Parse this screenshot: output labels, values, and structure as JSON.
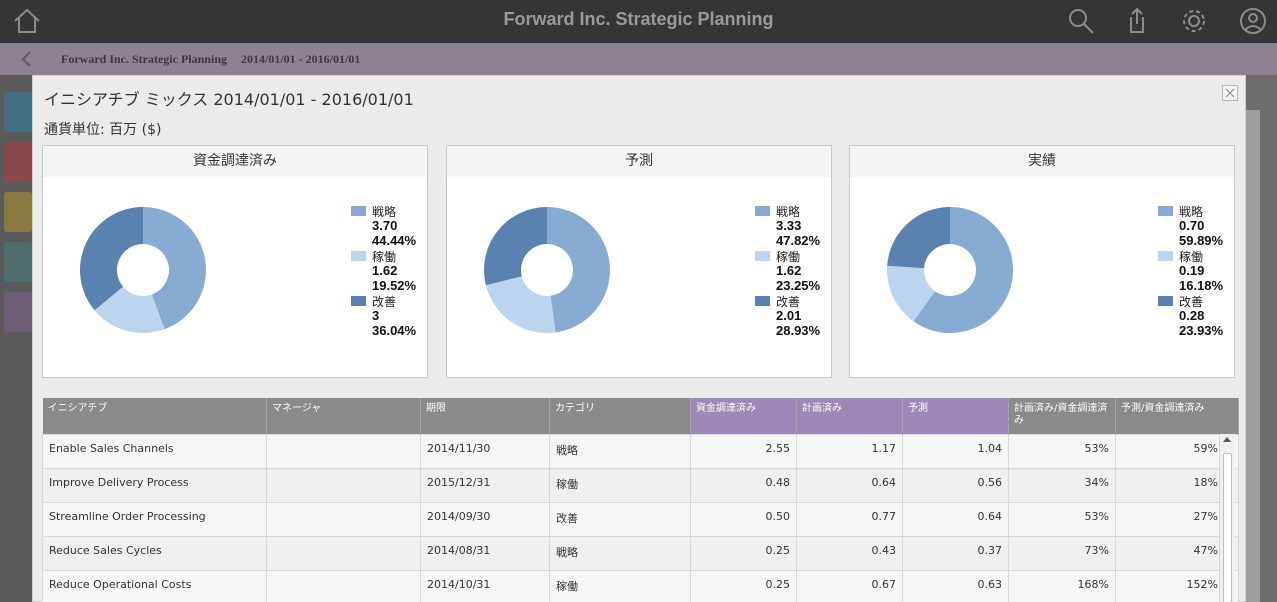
{
  "app": {
    "title": "Forward Inc. Strategic Planning"
  },
  "breadcrumb": {
    "name": "Forward Inc. Strategic Planning",
    "period": "2014/01/01 - 2016/01/01"
  },
  "modal": {
    "title": "イニシアチブ ミックス 2014/01/01 - 2016/01/01",
    "currency": "通貨単位: 百万 ($)"
  },
  "colors": {
    "strategy": "#86aad2",
    "operation": "#bcd5ee",
    "improvement": "#5a82b0"
  },
  "panels": [
    {
      "title": "資金調達済み",
      "legend": [
        {
          "label": "戦略",
          "value": "3.70",
          "pct": "44.44%"
        },
        {
          "label": "稼働",
          "value": "1.62",
          "pct": "19.52%"
        },
        {
          "label": "改善",
          "value": "3",
          "pct": "36.04%"
        }
      ]
    },
    {
      "title": "予測",
      "legend": [
        {
          "label": "戦略",
          "value": "3.33",
          "pct": "47.82%"
        },
        {
          "label": "稼働",
          "value": "1.62",
          "pct": "23.25%"
        },
        {
          "label": "改善",
          "value": "2.01",
          "pct": "28.93%"
        }
      ]
    },
    {
      "title": "実績",
      "legend": [
        {
          "label": "戦略",
          "value": "0.70",
          "pct": "59.89%"
        },
        {
          "label": "稼働",
          "value": "0.19",
          "pct": "16.18%"
        },
        {
          "label": "改善",
          "value": "0.28",
          "pct": "23.93%"
        }
      ]
    }
  ],
  "chart_data": [
    {
      "type": "pie",
      "title": "資金調達済み",
      "categories": [
        "戦略",
        "稼働",
        "改善"
      ],
      "values": [
        3.7,
        1.62,
        3
      ],
      "percentages": [
        44.44,
        19.52,
        36.04
      ]
    },
    {
      "type": "pie",
      "title": "予測",
      "categories": [
        "戦略",
        "稼働",
        "改善"
      ],
      "values": [
        3.33,
        1.62,
        2.01
      ],
      "percentages": [
        47.82,
        23.25,
        28.93
      ]
    },
    {
      "type": "pie",
      "title": "実績",
      "categories": [
        "戦略",
        "稼働",
        "改善"
      ],
      "values": [
        0.7,
        0.19,
        0.28
      ],
      "percentages": [
        59.89,
        16.18,
        23.93
      ]
    }
  ],
  "table": {
    "headers": [
      "イニシアチブ",
      "マネージャ",
      "期限",
      "カテゴリ",
      "資金調達済み",
      "計画済み",
      "予測",
      "計画済み/資金調達済み",
      "予測/資金調達済み"
    ],
    "rows": [
      [
        "Enable Sales Channels",
        "",
        "2014/11/30",
        "戦略",
        "2.55",
        "1.17",
        "1.04",
        "53%",
        "59%"
      ],
      [
        "Improve Delivery Process",
        "",
        "2015/12/31",
        "稼働",
        "0.48",
        "0.64",
        "0.56",
        "34%",
        "18%"
      ],
      [
        "Streamline Order Processing",
        "",
        "2014/09/30",
        "改善",
        "0.50",
        "0.77",
        "0.64",
        "53%",
        "27%"
      ],
      [
        "Reduce Sales Cycles",
        "",
        "2014/08/31",
        "戦略",
        "0.25",
        "0.43",
        "0.37",
        "73%",
        "47%"
      ],
      [
        "Reduce Operational Costs",
        "",
        "2014/10/31",
        "稼働",
        "0.25",
        "0.67",
        "0.63",
        "168%",
        "152%"
      ]
    ]
  }
}
